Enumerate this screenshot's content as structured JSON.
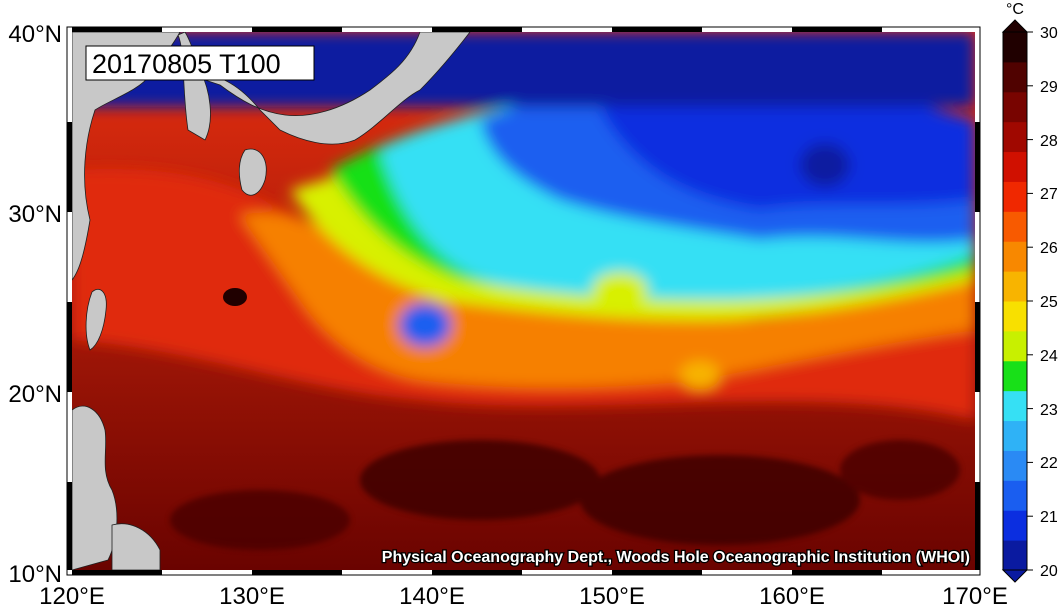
{
  "title": "20170805 T100",
  "credit": "Physical Oceanography Dept., Woods Hole Oceanographic Institution (WHOI)",
  "units": "°C",
  "lon_labels": [
    "120°E",
    "130°E",
    "140°E",
    "150°E",
    "160°E",
    "170°E"
  ],
  "lat_labels": [
    "40°N",
    "30°N",
    "20°N",
    "10°N"
  ],
  "colorbar": {
    "labels": [
      "30",
      "29",
      "28",
      "27",
      "26",
      "25",
      "24",
      "23",
      "22",
      "21",
      "20"
    ],
    "min": 20,
    "max": 30,
    "colors": [
      "#0a1aa0",
      "#0b2ee0",
      "#1a5ef0",
      "#2a8af4",
      "#2fb2f6",
      "#36e0f4",
      "#18e018",
      "#c8f000",
      "#f8e000",
      "#f8b400",
      "#f88800",
      "#f85a00",
      "#f02800",
      "#d01000",
      "#a00800",
      "#780400",
      "#500200",
      "#200000"
    ]
  },
  "lon_range": [
    120,
    170
  ],
  "lat_range": [
    10,
    40
  ],
  "colors": {
    "land": "#c8c8c8",
    "frame": "#000000"
  }
}
